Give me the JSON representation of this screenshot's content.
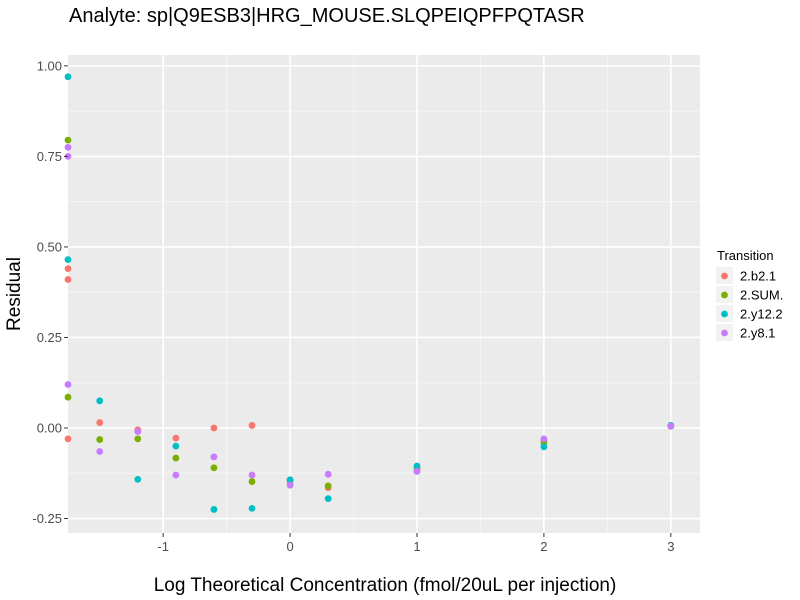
{
  "chart_data": {
    "type": "scatter",
    "title": "Analyte: sp|Q9ESB3|HRG_MOUSE.SLQPEIQPFPQTASR",
    "xlabel": "Log Theoretical Concentration (fmol/20uL per injection)",
    "ylabel": "Residual",
    "xlim": [
      -1.75,
      3.23
    ],
    "ylim": [
      -0.29,
      1.03
    ],
    "xticks": [
      -1,
      0,
      1,
      2,
      3
    ],
    "xtick_labels": [
      "-1",
      "0",
      "1",
      "2",
      "3"
    ],
    "yticks": [
      -0.25,
      0,
      0.25,
      0.5,
      0.75,
      1.0
    ],
    "ytick_labels": [
      "-0.25",
      "0.00",
      "0.25",
      "0.50",
      "0.75",
      "1.00"
    ],
    "grid": true,
    "legend": {
      "title": "Transition",
      "position": "right"
    },
    "series": [
      {
        "name": "2.b2.1",
        "color": "#F8766D",
        "points": [
          [
            -1.75,
            0.44
          ],
          [
            -1.75,
            0.41
          ],
          [
            -1.75,
            -0.03
          ],
          [
            -1.5,
            0.015
          ],
          [
            -1.2,
            -0.005
          ],
          [
            -0.9,
            -0.028
          ],
          [
            -0.6,
            0.0
          ],
          [
            -0.3,
            0.007
          ],
          [
            0.0,
            -0.155
          ],
          [
            0.3,
            -0.165
          ],
          [
            1.0,
            -0.115
          ],
          [
            2.0,
            -0.035
          ],
          [
            3.0,
            0.005
          ]
        ]
      },
      {
        "name": "2.SUM.",
        "color": "#7CAE00",
        "points": [
          [
            -1.75,
            0.795
          ],
          [
            -1.75,
            0.085
          ],
          [
            -1.5,
            -0.032
          ],
          [
            -1.2,
            -0.03
          ],
          [
            -0.9,
            -0.083
          ],
          [
            -0.6,
            -0.11
          ],
          [
            -0.3,
            -0.148
          ],
          [
            0.0,
            -0.145
          ],
          [
            0.3,
            -0.16
          ],
          [
            1.0,
            -0.11
          ],
          [
            2.0,
            -0.04
          ],
          [
            3.0,
            0.005
          ]
        ]
      },
      {
        "name": "2.y12.2",
        "color": "#00BFC4",
        "points": [
          [
            -1.75,
            0.97
          ],
          [
            -1.75,
            0.465
          ],
          [
            -1.5,
            0.075
          ],
          [
            -1.2,
            -0.142
          ],
          [
            -0.9,
            -0.05
          ],
          [
            -0.6,
            -0.225
          ],
          [
            -0.3,
            -0.222
          ],
          [
            0.0,
            -0.143
          ],
          [
            0.3,
            -0.195
          ],
          [
            1.0,
            -0.105
          ],
          [
            2.0,
            -0.052
          ],
          [
            3.0,
            0.007
          ]
        ]
      },
      {
        "name": "2.y8.1",
        "color": "#C77CFF",
        "points": [
          [
            -1.75,
            0.775
          ],
          [
            -1.75,
            0.75
          ],
          [
            -1.75,
            0.12
          ],
          [
            -1.5,
            -0.065
          ],
          [
            -1.2,
            -0.01
          ],
          [
            -0.9,
            -0.13
          ],
          [
            -0.6,
            -0.08
          ],
          [
            -0.3,
            -0.13
          ],
          [
            0.0,
            -0.158
          ],
          [
            0.3,
            -0.128
          ],
          [
            1.0,
            -0.12
          ],
          [
            2.0,
            -0.03
          ],
          [
            3.0,
            0.005
          ]
        ]
      }
    ]
  }
}
